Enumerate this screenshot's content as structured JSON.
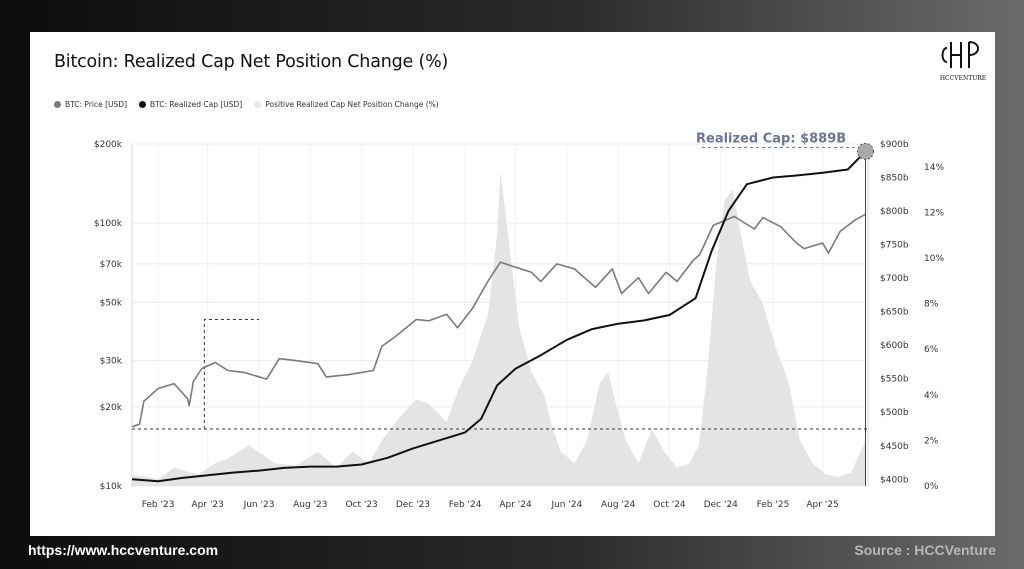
{
  "chart_data": {
    "type": "line",
    "title": "Bitcoin: Realized Cap Net Position Change (%)",
    "legend": [
      {
        "name": "BTC: Price [USD]",
        "color": "#7a7a7a"
      },
      {
        "name": "BTC: Realized Cap [USD]",
        "color": "#111111"
      },
      {
        "name": "Positive Realized Cap Net Position Change (%)",
        "color": "#e6e6e6"
      }
    ],
    "x_ticks": [
      "Feb '23",
      "Apr '23",
      "Jun '23",
      "Aug '23",
      "Oct '23",
      "Dec '23",
      "Feb '24",
      "Apr '24",
      "Jun '24",
      "Aug '24",
      "Oct '24",
      "Dec '24",
      "Feb '25",
      "Apr '25"
    ],
    "x_range": [
      "2023-01-01",
      "2025-05-25"
    ],
    "y_left": {
      "scale": "log",
      "ticks": [
        "$10k",
        "$20k",
        "$30k",
        "$50k",
        "$70k",
        "$100k",
        "$200k"
      ],
      "values": [
        10000,
        20000,
        30000,
        50000,
        70000,
        100000,
        200000
      ],
      "range": [
        10000,
        200000
      ]
    },
    "y_mid": {
      "scale": "linear",
      "ticks": [
        "$400b",
        "$450b",
        "$500b",
        "$550b",
        "$600b",
        "$650b",
        "$700b",
        "$750b",
        "$800b",
        "$850b",
        "$900b"
      ],
      "range": [
        390,
        900
      ]
    },
    "y_right": {
      "scale": "linear",
      "ticks": [
        "0%",
        "2%",
        "4%",
        "6%",
        "8%",
        "10%",
        "12%",
        "14%"
      ],
      "range": [
        0,
        15
      ]
    },
    "grid": true,
    "annotation": "Realized Cap: $889B",
    "series": [
      {
        "name": "BTC: Price [USD]",
        "x": [
          "2023-01-01",
          "2023-01-10",
          "2023-01-15",
          "2023-02-01",
          "2023-02-20",
          "2023-03-08",
          "2023-03-10",
          "2023-03-15",
          "2023-03-25",
          "2023-04-10",
          "2023-04-25",
          "2023-05-15",
          "2023-06-10",
          "2023-06-25",
          "2023-07-15",
          "2023-08-10",
          "2023-08-20",
          "2023-09-15",
          "2023-10-15",
          "2023-10-25",
          "2023-11-10",
          "2023-12-05",
          "2023-12-20",
          "2024-01-10",
          "2024-01-23",
          "2024-02-10",
          "2024-02-28",
          "2024-03-14",
          "2024-04-01",
          "2024-04-20",
          "2024-05-01",
          "2024-05-20",
          "2024-06-10",
          "2024-07-05",
          "2024-07-25",
          "2024-08-05",
          "2024-08-25",
          "2024-09-06",
          "2024-09-27",
          "2024-10-10",
          "2024-10-29",
          "2024-11-06",
          "2024-11-22",
          "2024-12-17",
          "2025-01-10",
          "2025-01-20",
          "2025-02-10",
          "2025-03-01",
          "2025-03-10",
          "2025-04-01",
          "2025-04-08",
          "2025-04-22",
          "2025-05-10",
          "2025-05-22"
        ],
        "values": [
          16800,
          17200,
          21000,
          23500,
          24500,
          21500,
          20200,
          25000,
          28000,
          29500,
          27500,
          27000,
          25500,
          30500,
          30000,
          29200,
          26000,
          26500,
          27500,
          34000,
          37000,
          43000,
          42500,
          45000,
          40000,
          47500,
          60000,
          71000,
          68000,
          65000,
          60000,
          70000,
          67000,
          57000,
          67000,
          54000,
          62000,
          54000,
          65000,
          60000,
          72000,
          76000,
          98000,
          106000,
          95000,
          105000,
          97000,
          84000,
          80000,
          84000,
          77000,
          93000,
          103000,
          108000
        ]
      },
      {
        "name": "BTC: Realized Cap [USD]",
        "x": [
          "2023-01-01",
          "2023-02-01",
          "2023-03-01",
          "2023-04-01",
          "2023-05-01",
          "2023-06-01",
          "2023-07-01",
          "2023-08-01",
          "2023-09-01",
          "2023-10-01",
          "2023-11-01",
          "2023-12-01",
          "2024-01-01",
          "2024-02-01",
          "2024-02-20",
          "2024-03-10",
          "2024-04-01",
          "2024-05-01",
          "2024-06-01",
          "2024-07-01",
          "2024-08-01",
          "2024-09-01",
          "2024-10-01",
          "2024-11-01",
          "2024-11-20",
          "2024-12-10",
          "2025-01-01",
          "2025-02-01",
          "2025-03-01",
          "2025-04-01",
          "2025-05-01",
          "2025-05-22"
        ],
        "values": [
          400,
          397,
          402,
          406,
          410,
          413,
          417,
          419,
          419,
          422,
          432,
          446,
          458,
          470,
          490,
          540,
          565,
          585,
          608,
          624,
          632,
          637,
          645,
          670,
          740,
          800,
          840,
          850,
          853,
          857,
          862,
          889
        ]
      },
      {
        "name": "Positive Realized Cap Net Position Change (%)",
        "x": [
          "2023-01-01",
          "2023-02-01",
          "2023-02-20",
          "2023-03-20",
          "2023-04-10",
          "2023-04-25",
          "2023-05-20",
          "2023-06-20",
          "2023-07-15",
          "2023-08-10",
          "2023-09-01",
          "2023-09-20",
          "2023-10-10",
          "2023-10-25",
          "2023-11-15",
          "2023-12-05",
          "2023-12-20",
          "2024-01-10",
          "2024-01-25",
          "2024-02-10",
          "2024-02-28",
          "2024-03-10",
          "2024-03-14",
          "2024-03-20",
          "2024-04-05",
          "2024-04-20",
          "2024-05-05",
          "2024-05-15",
          "2024-05-25",
          "2024-06-10",
          "2024-06-25",
          "2024-07-10",
          "2024-07-20",
          "2024-07-30",
          "2024-08-10",
          "2024-08-25",
          "2024-09-10",
          "2024-09-25",
          "2024-10-10",
          "2024-10-25",
          "2024-11-05",
          "2024-11-15",
          "2024-11-25",
          "2024-12-05",
          "2024-12-15",
          "2024-12-25",
          "2025-01-05",
          "2025-01-20",
          "2025-02-05",
          "2025-02-20",
          "2025-03-05",
          "2025-03-20",
          "2025-04-05",
          "2025-04-20",
          "2025-05-05",
          "2025-05-22"
        ],
        "values": [
          0.5,
          0.3,
          0.8,
          0.5,
          1.0,
          1.2,
          1.8,
          1.0,
          0.9,
          1.5,
          0.8,
          1.5,
          1.0,
          2.0,
          3.0,
          3.8,
          3.6,
          2.8,
          4.3,
          5.5,
          7.5,
          11.0,
          13.8,
          12.0,
          7.0,
          5.0,
          4.0,
          2.5,
          1.5,
          1.0,
          2.0,
          4.5,
          5.0,
          3.5,
          2.0,
          1.0,
          2.5,
          1.5,
          0.8,
          1.0,
          1.8,
          5.0,
          9.5,
          12.5,
          13.0,
          11.0,
          9.0,
          8.0,
          6.0,
          4.5,
          2.0,
          1.0,
          0.5,
          0.4,
          0.6,
          2.0
        ]
      }
    ]
  },
  "footer": {
    "url": "https://www.hccventure.com",
    "source": "Source : HCCVenture"
  },
  "logo": {
    "text": "HCCVENTURE"
  }
}
